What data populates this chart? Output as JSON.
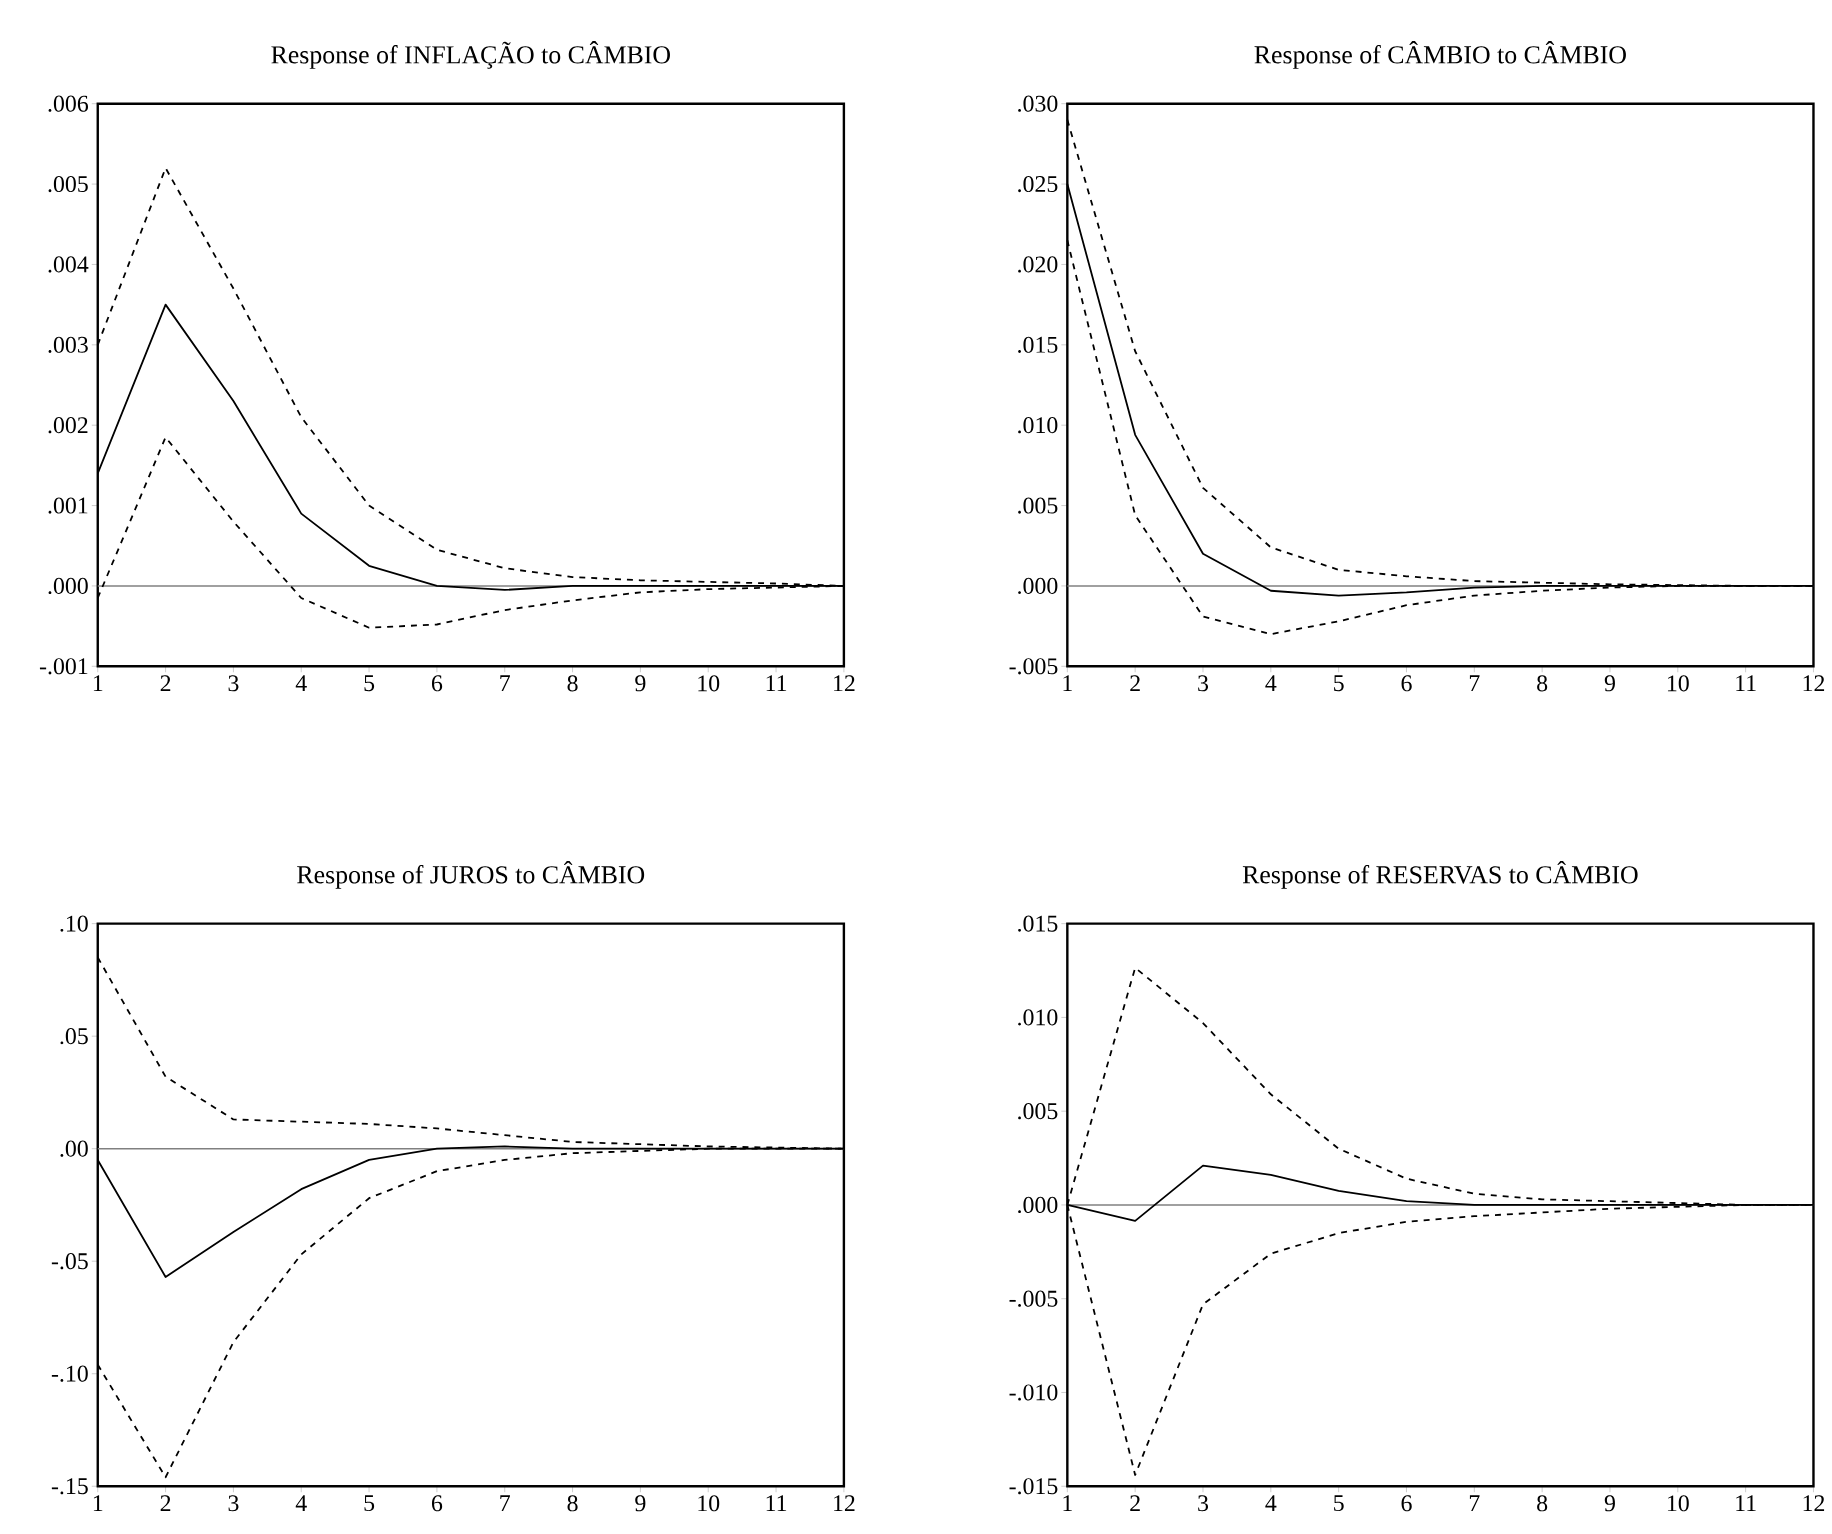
{
  "chart_data": [
    {
      "type": "line",
      "title": "Response of INFLAÇÃO to CÂMBIO",
      "x": [
        1,
        2,
        3,
        4,
        5,
        6,
        7,
        8,
        9,
        10,
        11,
        12
      ],
      "xlim": [
        1,
        12
      ],
      "xticks": [
        1,
        2,
        3,
        4,
        5,
        6,
        7,
        8,
        9,
        10,
        11,
        12
      ],
      "ylim": [
        -0.001,
        0.006
      ],
      "yticks": [
        {
          "value": -0.001,
          "label": "-.001"
        },
        {
          "value": 0,
          "label": ".000"
        },
        {
          "value": 0.001,
          "label": ".001"
        },
        {
          "value": 0.002,
          "label": ".002"
        },
        {
          "value": 0.003,
          "label": ".003"
        },
        {
          "value": 0.004,
          "label": ".004"
        },
        {
          "value": 0.005,
          "label": ".005"
        },
        {
          "value": 0.006,
          "label": ".006"
        }
      ],
      "ref_lines": [
        {
          "axis": "y",
          "value": 0,
          "color": "#808080"
        }
      ],
      "series": [
        {
          "color": "#000000",
          "line_style": "solid",
          "values": [
            0.0014,
            0.0035,
            0.0023,
            0.0009,
            0.00025,
            0,
            -5e-05,
            0,
            0,
            0,
            0,
            0
          ]
        },
        {
          "color": "#000000",
          "line_style": "dashed",
          "values": [
            0.003,
            0.0052,
            0.0037,
            0.0021,
            0.001,
            0.00045,
            0.00022,
            0.00011,
            7e-05,
            5e-05,
            3e-05,
            0
          ]
        },
        {
          "color": "#000000",
          "line_style": "dashed",
          "values": [
            -0.00015,
            0.00185,
            0.0008,
            -0.00015,
            -0.00052,
            -0.00048,
            -0.0003,
            -0.00018,
            -8e-05,
            -4e-05,
            -2e-05,
            0
          ]
        }
      ]
    },
    {
      "type": "line",
      "title": "Response of CÂMBIO to CÂMBIO",
      "x": [
        1,
        2,
        3,
        4,
        5,
        6,
        7,
        8,
        9,
        10,
        11,
        12
      ],
      "xlim": [
        1,
        12
      ],
      "xticks": [
        1,
        2,
        3,
        4,
        5,
        6,
        7,
        8,
        9,
        10,
        11,
        12
      ],
      "ylim": [
        -0.005,
        0.03
      ],
      "yticks": [
        {
          "value": -0.005,
          "label": "-.005"
        },
        {
          "value": 0,
          "label": ".000"
        },
        {
          "value": 0.005,
          "label": ".005"
        },
        {
          "value": 0.01,
          "label": ".010"
        },
        {
          "value": 0.015,
          "label": ".015"
        },
        {
          "value": 0.02,
          "label": ".020"
        },
        {
          "value": 0.025,
          "label": ".025"
        },
        {
          "value": 0.03,
          "label": ".030"
        }
      ],
      "ref_lines": [
        {
          "axis": "y",
          "value": 0,
          "color": "#808080"
        }
      ],
      "series": [
        {
          "color": "#000000",
          "line_style": "solid",
          "values": [
            0.025,
            0.0094,
            0.002,
            -0.0003,
            -0.0006,
            -0.0004,
            -0.0001,
            0,
            0,
            0,
            0,
            0
          ]
        },
        {
          "color": "#000000",
          "line_style": "dashed",
          "values": [
            0.029,
            0.0146,
            0.0061,
            0.0024,
            0.001,
            0.0006,
            0.0003,
            0.0002,
            0.0001,
            5e-05,
            0,
            0
          ]
        },
        {
          "color": "#000000",
          "line_style": "dashed",
          "values": [
            0.0215,
            0.0044,
            -0.0019,
            -0.003,
            -0.0022,
            -0.0012,
            -0.0006,
            -0.0003,
            -0.0001,
            0,
            0,
            0
          ]
        }
      ]
    },
    {
      "type": "line",
      "title": "Response of JUROS to CÂMBIO",
      "x": [
        1,
        2,
        3,
        4,
        5,
        6,
        7,
        8,
        9,
        10,
        11,
        12
      ],
      "xlim": [
        1,
        12
      ],
      "xticks": [
        1,
        2,
        3,
        4,
        5,
        6,
        7,
        8,
        9,
        10,
        11,
        12
      ],
      "ylim": [
        -0.15,
        0.1
      ],
      "yticks": [
        {
          "value": -0.15,
          "label": "-.15"
        },
        {
          "value": -0.1,
          "label": "-.10"
        },
        {
          "value": -0.05,
          "label": "-.05"
        },
        {
          "value": 0,
          "label": ".00"
        },
        {
          "value": 0.05,
          "label": ".05"
        },
        {
          "value": 0.1,
          "label": ".10"
        }
      ],
      "ref_lines": [
        {
          "axis": "y",
          "value": 0,
          "color": "#808080"
        }
      ],
      "series": [
        {
          "color": "#000000",
          "line_style": "solid",
          "values": [
            -0.005,
            -0.057,
            -0.037,
            -0.018,
            -0.005,
            0,
            0.001,
            0,
            0,
            0,
            0,
            0
          ]
        },
        {
          "color": "#000000",
          "line_style": "dashed",
          "values": [
            0.085,
            0.032,
            0.013,
            0.012,
            0.011,
            0.009,
            0.006,
            0.003,
            0.002,
            0.001,
            0.0005,
            0
          ]
        },
        {
          "color": "#000000",
          "line_style": "dashed",
          "values": [
            -0.096,
            -0.146,
            -0.086,
            -0.047,
            -0.022,
            -0.01,
            -0.005,
            -0.002,
            -0.001,
            0,
            0,
            0
          ]
        }
      ]
    },
    {
      "type": "line",
      "title": "Response of RESERVAS to CÂMBIO",
      "x": [
        1,
        2,
        3,
        4,
        5,
        6,
        7,
        8,
        9,
        10,
        11,
        12
      ],
      "xlim": [
        1,
        12
      ],
      "xticks": [
        1,
        2,
        3,
        4,
        5,
        6,
        7,
        8,
        9,
        10,
        11,
        12
      ],
      "ylim": [
        -0.015,
        0.015
      ],
      "yticks": [
        {
          "value": -0.015,
          "label": "-.015"
        },
        {
          "value": -0.01,
          "label": "-.010"
        },
        {
          "value": -0.005,
          "label": "-.005"
        },
        {
          "value": 0,
          "label": ".000"
        },
        {
          "value": 0.005,
          "label": ".005"
        },
        {
          "value": 0.01,
          "label": ".010"
        },
        {
          "value": 0.015,
          "label": ".015"
        }
      ],
      "ref_lines": [
        {
          "axis": "y",
          "value": 0,
          "color": "#808080"
        }
      ],
      "series": [
        {
          "color": "#000000",
          "line_style": "solid",
          "values": [
            0,
            -0.00085,
            0.0021,
            0.0016,
            0.00075,
            0.0002,
            0,
            0,
            0,
            0,
            0,
            0
          ]
        },
        {
          "color": "#000000",
          "line_style": "dashed",
          "values": [
            0,
            0.01265,
            0.0097,
            0.0059,
            0.003,
            0.0014,
            0.0006,
            0.0003,
            0.0002,
            0.0001,
            0,
            0
          ]
        },
        {
          "color": "#000000",
          "line_style": "dashed",
          "values": [
            0,
            -0.0144,
            -0.0053,
            -0.0026,
            -0.0015,
            -0.0009,
            -0.0006,
            -0.0004,
            -0.0002,
            -0.0001,
            0,
            0
          ]
        }
      ]
    }
  ]
}
